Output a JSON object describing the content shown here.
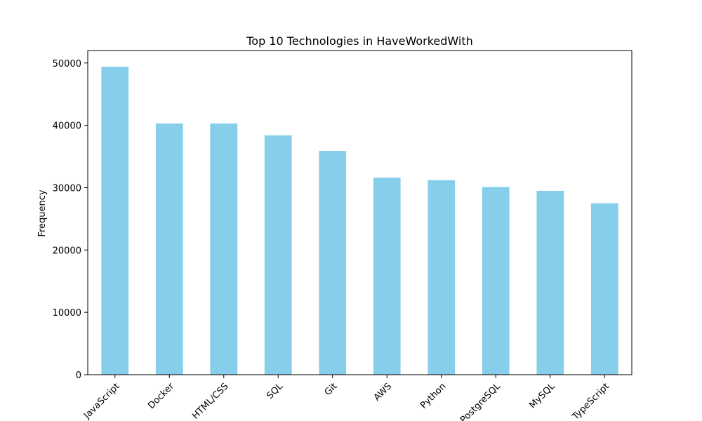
{
  "chart_data": {
    "type": "bar",
    "title": "Top 10 Technologies in HaveWorkedWith",
    "xlabel": "",
    "ylabel": "Frequency",
    "categories": [
      "JavaScript",
      "Docker",
      "HTML/CSS",
      "SQL",
      "Git",
      "AWS",
      "Python",
      "PostgreSQL",
      "MySQL",
      "TypeScript"
    ],
    "values": [
      49400,
      40300,
      40300,
      38400,
      35900,
      31600,
      31200,
      30100,
      29500,
      27500
    ],
    "ylim": [
      0,
      52000
    ],
    "yticks": [
      0,
      10000,
      20000,
      30000,
      40000,
      50000
    ],
    "bar_color": "#87ceeb",
    "grid": false,
    "xtick_rotation": 45
  }
}
